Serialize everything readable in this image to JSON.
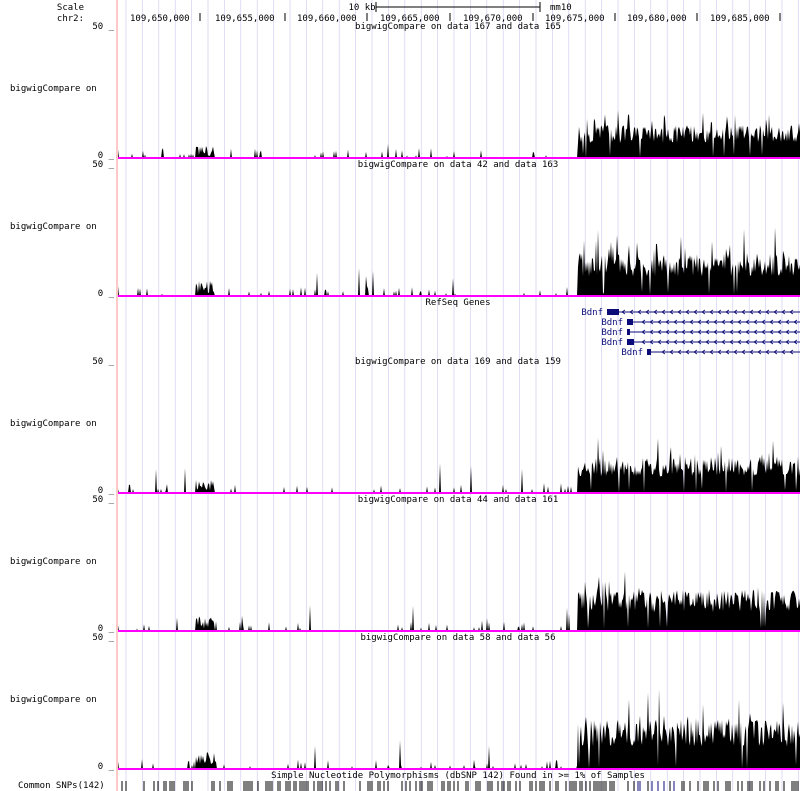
{
  "header": {
    "scale_label": "Scale",
    "chrom_label": "chr2:",
    "scale_bar_label": "10 kb",
    "assembly": "mm10",
    "positions": [
      "109,650,000",
      "109,655,000",
      "109,660,000",
      "109,665,000",
      "109,670,000",
      "109,675,000",
      "109,680,000",
      "109,685,000"
    ]
  },
  "colors": {
    "signal": "#000000",
    "baseline": "#ff00ff",
    "gene": "#0c0c78",
    "grid": "#c8c8f0",
    "left_edge": "#ff0000"
  },
  "tracks": [
    {
      "id": "t1",
      "side_label": "bigwigCompare on",
      "title": "bigwigCompare on data 167 and data 165",
      "ymax_label": "50 _",
      "ymin_label": "0 _",
      "peak_scale": 1.0
    },
    {
      "id": "t2",
      "side_label": "bigwigCompare on",
      "title": "bigwigCompare on data 42 and data 163",
      "ymax_label": "50 _",
      "ymin_label": "0 _",
      "peak_scale": 1.3
    },
    {
      "id": "t3",
      "side_label": "bigwigCompare on",
      "title": "bigwigCompare on data 169 and data 159",
      "ymax_label": "50 _",
      "ymin_label": "0 _",
      "peak_scale": 1.1
    },
    {
      "id": "t4",
      "side_label": "bigwigCompare on",
      "title": "bigwigCompare on data 44 and data 161",
      "ymax_label": "50 _",
      "ymin_label": "0 _",
      "peak_scale": 1.25
    },
    {
      "id": "t5",
      "side_label": "bigwigCompare on",
      "title": "bigwigCompare on data 58 and data 56",
      "ymax_label": "50 _",
      "ymin_label": "0 _",
      "peak_scale": 1.5
    }
  ],
  "refseq": {
    "title": "RefSeq Genes",
    "transcripts": [
      "Bdnf",
      "Bdnf",
      "Bdnf",
      "Bdnf",
      "Bdnf"
    ]
  },
  "snps": {
    "label": "Common SNPs(142)",
    "title": "Simple Nucleotide Polymorphisms (dbSNP 142) Found in >= 1% of Samples"
  }
}
